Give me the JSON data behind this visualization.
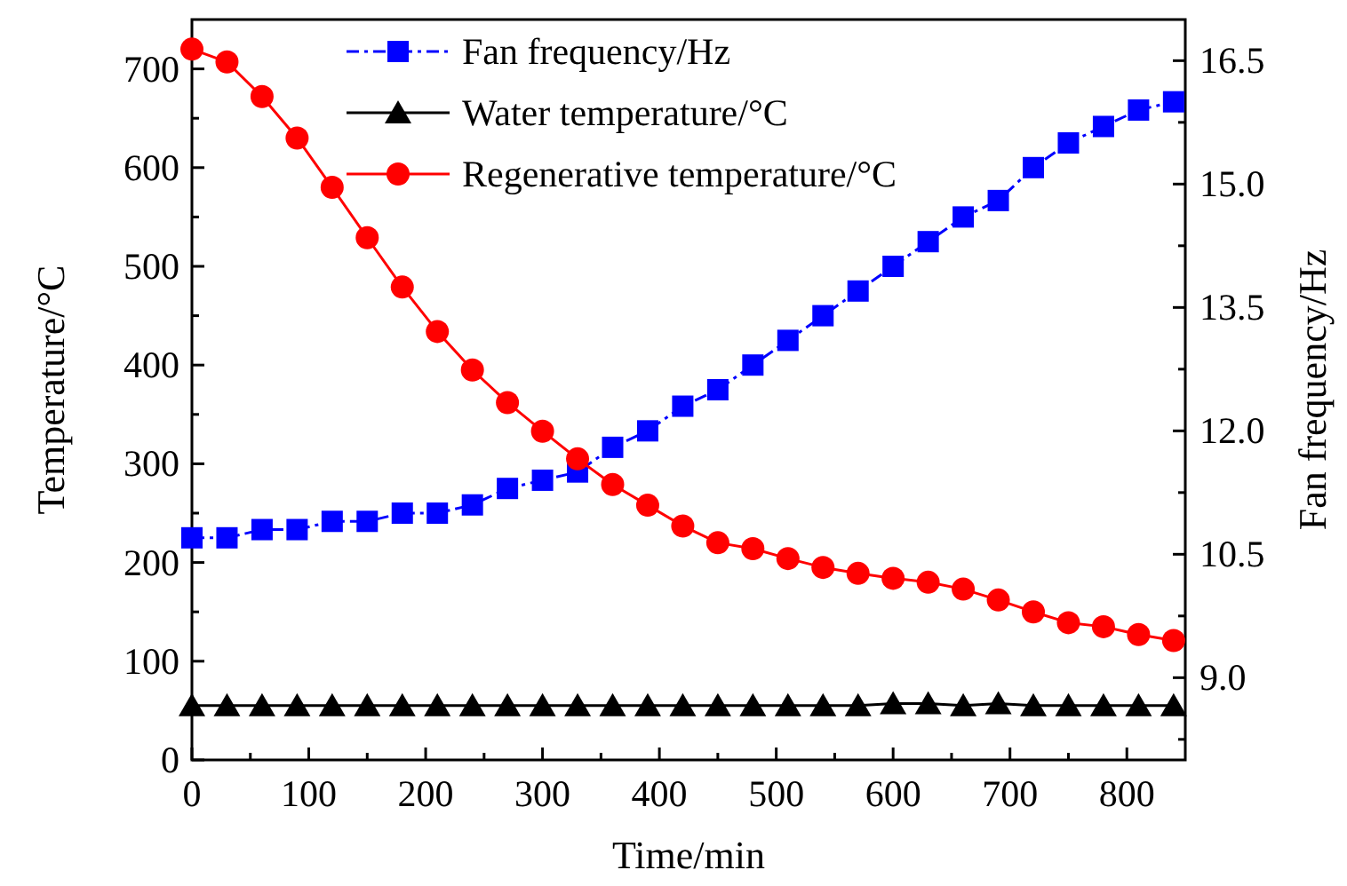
{
  "chart_data": {
    "type": "line",
    "xlabel": "Time/min",
    "ylabel": "Temperature/°C",
    "y2label": "Fan frequency/Hz",
    "x": [
      0,
      30,
      60,
      90,
      120,
      150,
      180,
      210,
      240,
      270,
      300,
      330,
      360,
      390,
      420,
      450,
      480,
      510,
      540,
      570,
      600,
      630,
      660,
      690,
      720,
      750,
      780,
      810,
      840
    ],
    "series": [
      {
        "name": "Fan frequency/Hz",
        "color": "#0000ff",
        "axis": "y2",
        "marker": "square",
        "line_style": "dashdot",
        "values": [
          10.7,
          10.7,
          10.8,
          10.8,
          10.9,
          10.9,
          11.0,
          11.0,
          11.1,
          11.3,
          11.4,
          11.5,
          11.8,
          12.0,
          12.3,
          12.5,
          12.8,
          13.1,
          13.4,
          13.7,
          14.0,
          14.3,
          14.6,
          14.8,
          15.2,
          15.5,
          15.7,
          15.9,
          16.0
        ]
      },
      {
        "name": "Water temperature/°C",
        "color": "#000000",
        "marker": "triangle",
        "line_style": "solid",
        "values": [
          55,
          55,
          55,
          55,
          55,
          55,
          55,
          55,
          55,
          55,
          55,
          55,
          55,
          55,
          55,
          55,
          55,
          55,
          55,
          55,
          57,
          57,
          55,
          57,
          55,
          55,
          55,
          55,
          55
        ]
      },
      {
        "name": "Regenerative temperature/°C",
        "color": "#ff0000",
        "marker": "circle",
        "line_style": "solid",
        "values": [
          720,
          707,
          672,
          630,
          580,
          529,
          479,
          434,
          395,
          362,
          333,
          305,
          279,
          258,
          237,
          220,
          214,
          204,
          195,
          189,
          184,
          180,
          173,
          162,
          150,
          139,
          135,
          127,
          121
        ]
      }
    ],
    "xlim": [
      0,
      850
    ],
    "xticks": [
      0,
      {
        "value": 50,
        "label": null
      },
      100,
      {
        "value": 150,
        "label": null
      },
      200,
      {
        "value": 250,
        "label": null
      },
      300,
      {
        "value": 350,
        "label": null
      },
      400,
      {
        "value": 450,
        "label": null
      },
      500,
      {
        "value": 550,
        "label": null
      },
      600,
      {
        "value": 650,
        "label": null
      },
      700,
      {
        "value": 750,
        "label": null
      },
      800
    ],
    "ylim": [
      0,
      750
    ],
    "yticks": [
      0,
      {
        "value": 50,
        "label": null
      },
      100,
      {
        "value": 150,
        "label": null
      },
      200,
      {
        "value": 250,
        "label": null
      },
      300,
      {
        "value": 350,
        "label": null
      },
      400,
      {
        "value": 450,
        "label": null
      },
      500,
      {
        "value": 550,
        "label": null
      },
      600,
      {
        "value": 650,
        "label": null
      },
      700
    ],
    "y2lim": [
      8,
      17
    ],
    "y2ticks": [
      {
        "value": 8.25,
        "label": null
      },
      {
        "value": 9,
        "label": "9.0"
      },
      {
        "value": 9.75,
        "label": null
      },
      10.5,
      {
        "value": 11.25,
        "label": null
      },
      {
        "value": 12,
        "label": "12.0"
      },
      {
        "value": 12.75,
        "label": null
      },
      13.5,
      {
        "value": 14.25,
        "label": null
      },
      {
        "value": 15,
        "label": "15.0"
      },
      {
        "value": 15.75,
        "label": null
      },
      16.5
    ],
    "grid": false,
    "legend": "top"
  }
}
